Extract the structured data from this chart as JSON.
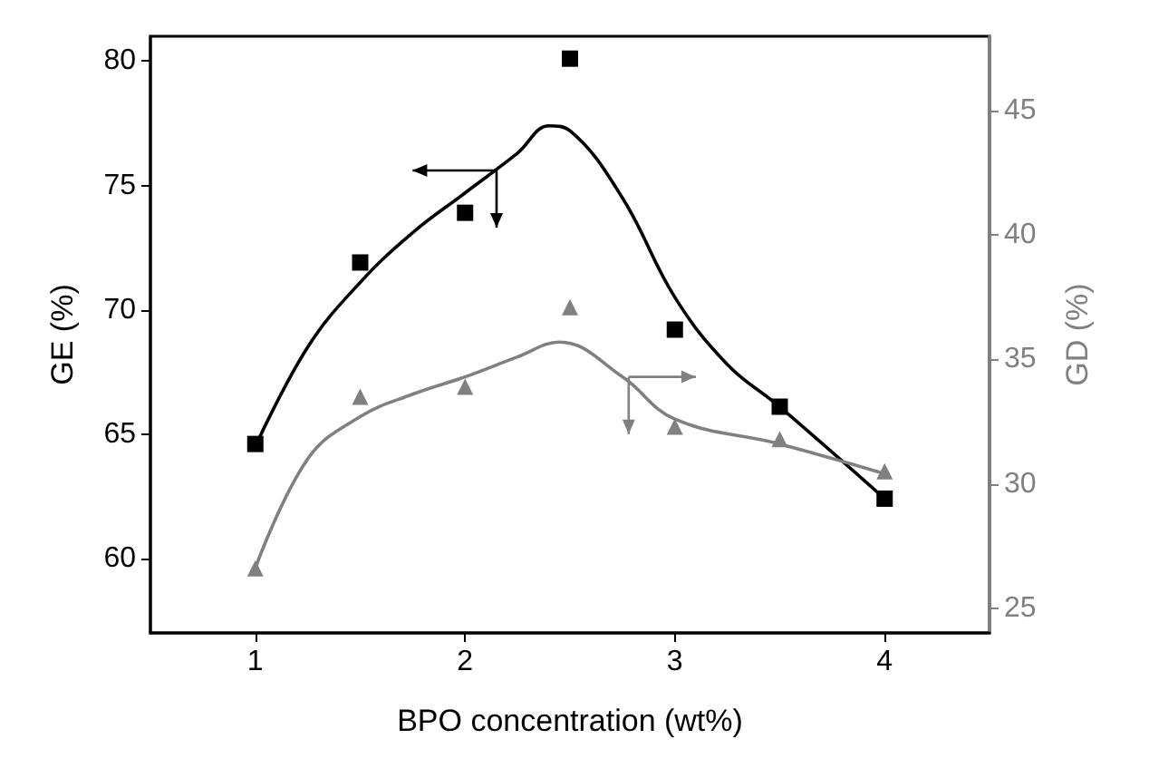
{
  "chart_data": {
    "type": "scatter",
    "xlabel": "BPO concentration (wt%)",
    "ylabel": "GE (%)",
    "y2label": "GD (%)",
    "x": [
      1,
      1.5,
      2,
      2.5,
      3,
      3.5,
      4
    ],
    "series": [
      {
        "color": "#000000",
        "marker": "square",
        "values": [
          64.6,
          71.9,
          73.9,
          80.1,
          69.2,
          66.1,
          62.4
        ]
      },
      {
        "color": "#808080",
        "marker": "triangle",
        "axis": "y2",
        "values": [
          26.6,
          33.5,
          33.9,
          37.1,
          32.3,
          31.8,
          30.5
        ]
      },
      {
        "type": "line",
        "color": "#000000",
        "marker": "none",
        "line_style": "solid",
        "x": [
          1,
          1.25,
          1.5,
          1.75,
          2,
          2.25,
          2.4,
          2.5,
          2.75,
          3,
          3.25,
          3.5,
          4
        ],
        "values": [
          64.5,
          68.5,
          71.1,
          73.1,
          74.7,
          76.3,
          77.4,
          77.2,
          74.5,
          70.5,
          67.8,
          66.1,
          62.4
        ]
      },
      {
        "type": "line",
        "color": "#808080",
        "marker": "none",
        "line_style": "solid",
        "axis": "y2",
        "x": [
          1,
          1.25,
          1.5,
          1.75,
          2,
          2.25,
          2.45,
          2.75,
          3,
          3.5,
          4
        ],
        "values": [
          26.6,
          31,
          32.7,
          33.6,
          34.3,
          35.1,
          35.7,
          34.3,
          32.6,
          31.6,
          30.4
        ]
      }
    ],
    "xlim": [
      0.5,
      4.5
    ],
    "xticks": [
      1,
      2,
      3,
      4
    ],
    "ylim": [
      57,
      81
    ],
    "yticks": [
      60,
      65,
      70,
      75,
      80
    ],
    "y2lim": [
      24,
      48
    ],
    "y2ticks": [
      25,
      30,
      35,
      40,
      45
    ]
  }
}
